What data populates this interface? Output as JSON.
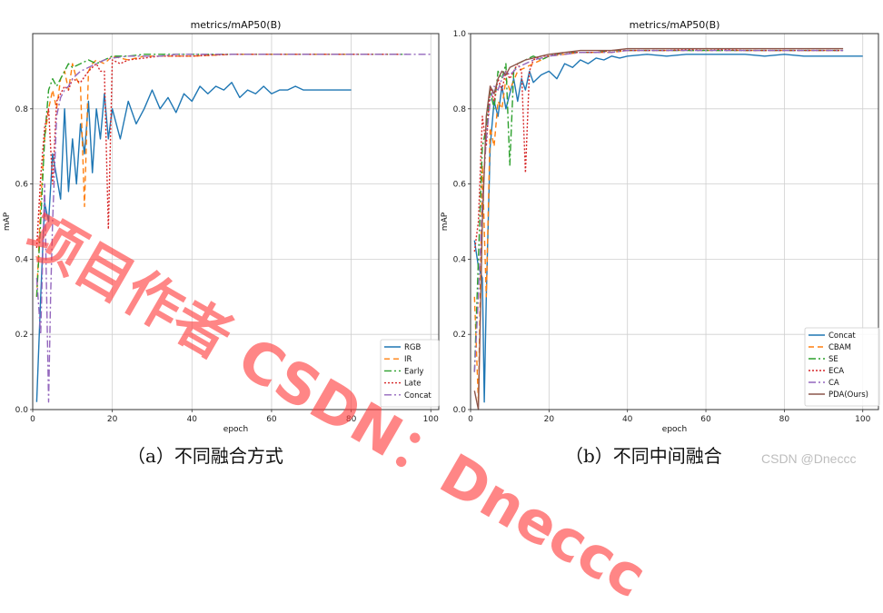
{
  "chart_data": [
    {
      "type": "line",
      "title": "metrics/mAP50(B)",
      "xlabel": "epoch",
      "ylabel": "mAP",
      "xlim": [
        0,
        102
      ],
      "ylim": [
        0,
        1.0
      ],
      "xticks": [
        "0",
        "20",
        "40",
        "60",
        "80",
        "100"
      ],
      "yticks": [
        "0.0",
        "0.2",
        "0.4",
        "0.6",
        "0.8"
      ],
      "grid": true,
      "legend": "bottom-right",
      "series": [
        {
          "name": "RGB",
          "color": "#1f77b4",
          "dash": "",
          "x": [
            1,
            2,
            3,
            4,
            5,
            6,
            7,
            8,
            9,
            10,
            11,
            12,
            13,
            14,
            15,
            16,
            17,
            18,
            19,
            20,
            22,
            24,
            26,
            28,
            30,
            32,
            34,
            36,
            38,
            40,
            42,
            44,
            46,
            48,
            50,
            52,
            54,
            56,
            58,
            60,
            62,
            64,
            66,
            68,
            70,
            72,
            74,
            76,
            78,
            80
          ],
          "y": [
            0.02,
            0.3,
            0.55,
            0.5,
            0.68,
            0.62,
            0.56,
            0.8,
            0.58,
            0.72,
            0.6,
            0.76,
            0.68,
            0.82,
            0.63,
            0.8,
            0.72,
            0.84,
            0.72,
            0.8,
            0.72,
            0.82,
            0.76,
            0.8,
            0.85,
            0.8,
            0.83,
            0.79,
            0.84,
            0.82,
            0.86,
            0.84,
            0.86,
            0.85,
            0.87,
            0.83,
            0.85,
            0.84,
            0.86,
            0.84,
            0.85,
            0.85,
            0.86,
            0.85,
            0.85,
            0.85,
            0.85,
            0.85,
            0.85,
            0.85
          ]
        },
        {
          "name": "IR",
          "color": "#ff7f0e",
          "dash": "6,4",
          "x": [
            1,
            2,
            3,
            4,
            5,
            6,
            7,
            8,
            9,
            10,
            11,
            12,
            13,
            14,
            15,
            16,
            18,
            20,
            24,
            28,
            32,
            36,
            40,
            50,
            60,
            70,
            80
          ],
          "y": [
            0.3,
            0.55,
            0.72,
            0.8,
            0.85,
            0.8,
            0.88,
            0.9,
            0.85,
            0.92,
            0.88,
            0.86,
            0.54,
            0.9,
            0.92,
            0.93,
            0.92,
            0.94,
            0.93,
            0.94,
            0.94,
            0.94,
            0.94,
            0.945,
            0.945,
            0.945,
            0.945
          ]
        },
        {
          "name": "Early",
          "color": "#2ca02c",
          "dash": "8,3,2,3",
          "x": [
            1,
            2,
            3,
            4,
            5,
            6,
            7,
            8,
            9,
            10,
            12,
            14,
            16,
            18,
            20,
            24,
            28,
            32,
            36,
            40,
            50,
            60,
            70,
            80,
            90,
            94
          ],
          "y": [
            0.3,
            0.5,
            0.72,
            0.85,
            0.88,
            0.86,
            0.88,
            0.9,
            0.92,
            0.91,
            0.92,
            0.93,
            0.92,
            0.93,
            0.94,
            0.94,
            0.945,
            0.945,
            0.945,
            0.945,
            0.945,
            0.945,
            0.945,
            0.945,
            0.945,
            0.945
          ]
        },
        {
          "name": "Late",
          "color": "#d62728",
          "dash": "2,2",
          "x": [
            1,
            2,
            3,
            4,
            5,
            6,
            7,
            8,
            9,
            10,
            12,
            14,
            16,
            17,
            18,
            19,
            20,
            22,
            24,
            28,
            32,
            36,
            40,
            50,
            60,
            70,
            80,
            90,
            92
          ],
          "y": [
            0.43,
            0.62,
            0.75,
            0.8,
            0.6,
            0.82,
            0.84,
            0.86,
            0.85,
            0.88,
            0.87,
            0.9,
            0.92,
            0.9,
            0.9,
            0.48,
            0.93,
            0.92,
            0.93,
            0.935,
            0.94,
            0.94,
            0.94,
            0.945,
            0.945,
            0.945,
            0.945,
            0.945,
            0.945
          ]
        },
        {
          "name": "Concat",
          "color": "#9467bd",
          "dash": "8,3,2,3",
          "x": [
            1,
            2,
            3,
            4,
            4.5,
            5,
            6,
            7,
            8,
            9,
            10,
            12,
            14,
            16,
            18,
            20,
            24,
            28,
            32,
            36,
            40,
            50,
            60,
            70,
            80,
            90,
            100
          ],
          "y": [
            0.35,
            0.2,
            0.6,
            0.02,
            0.3,
            0.5,
            0.78,
            0.83,
            0.85,
            0.86,
            0.88,
            0.9,
            0.91,
            0.92,
            0.93,
            0.935,
            0.94,
            0.94,
            0.94,
            0.945,
            0.945,
            0.945,
            0.945,
            0.945,
            0.945,
            0.945,
            0.945
          ]
        }
      ]
    },
    {
      "type": "line",
      "title": "metrics/mAP50(B)",
      "xlabel": "epoch",
      "ylabel": "mAP",
      "xlim": [
        0,
        104
      ],
      "ylim": [
        0,
        1.0
      ],
      "xticks": [
        "0",
        "20",
        "40",
        "60",
        "80",
        "100"
      ],
      "yticks": [
        "0.0",
        "0.2",
        "0.4",
        "0.6",
        "0.8",
        "1.0"
      ],
      "grid": true,
      "legend": "bottom-right",
      "series": [
        {
          "name": "Concat",
          "color": "#1f77b4",
          "dash": "",
          "x": [
            1,
            2,
            3,
            3.5,
            4,
            5,
            6,
            7,
            8,
            9,
            10,
            11,
            12,
            13,
            14,
            15,
            16,
            18,
            20,
            22,
            24,
            26,
            28,
            30,
            32,
            34,
            36,
            38,
            40,
            45,
            50,
            55,
            60,
            65,
            70,
            75,
            80,
            85,
            90,
            95,
            100
          ],
          "y": [
            0.45,
            0.38,
            0.35,
            0.02,
            0.3,
            0.7,
            0.82,
            0.78,
            0.86,
            0.8,
            0.84,
            0.88,
            0.82,
            0.88,
            0.85,
            0.9,
            0.87,
            0.89,
            0.9,
            0.88,
            0.92,
            0.91,
            0.93,
            0.92,
            0.935,
            0.93,
            0.94,
            0.935,
            0.94,
            0.945,
            0.94,
            0.945,
            0.945,
            0.945,
            0.945,
            0.94,
            0.945,
            0.94,
            0.94,
            0.94,
            0.94
          ]
        },
        {
          "name": "CBAM",
          "color": "#ff7f0e",
          "dash": "6,4",
          "x": [
            1,
            2,
            3,
            4,
            5,
            6,
            7,
            8,
            9,
            10,
            12,
            14,
            16,
            18,
            20,
            24,
            28,
            32,
            36,
            40,
            50,
            60,
            70,
            80,
            90,
            95
          ],
          "y": [
            0.3,
            0.02,
            0.65,
            0.3,
            0.75,
            0.7,
            0.82,
            0.8,
            0.88,
            0.85,
            0.9,
            0.91,
            0.92,
            0.93,
            0.94,
            0.945,
            0.95,
            0.95,
            0.95,
            0.955,
            0.955,
            0.955,
            0.955,
            0.955,
            0.955,
            0.955
          ]
        },
        {
          "name": "SE",
          "color": "#2ca02c",
          "dash": "8,3,2,3",
          "x": [
            1,
            2,
            3,
            4,
            5,
            6,
            7,
            8,
            9,
            10,
            11,
            12,
            14,
            16,
            18,
            20,
            24,
            28,
            32,
            36,
            40,
            50,
            60,
            70,
            80,
            90,
            95
          ],
          "y": [
            0.1,
            0.4,
            0.7,
            0.75,
            0.85,
            0.8,
            0.9,
            0.88,
            0.92,
            0.65,
            0.9,
            0.92,
            0.93,
            0.94,
            0.93,
            0.94,
            0.95,
            0.95,
            0.95,
            0.955,
            0.955,
            0.955,
            0.955,
            0.955,
            0.955,
            0.955,
            0.955
          ]
        },
        {
          "name": "ECA",
          "color": "#d62728",
          "dash": "2,2",
          "x": [
            1,
            2,
            3,
            4,
            5,
            6,
            7,
            8,
            9,
            10,
            12,
            13,
            14,
            15,
            16,
            18,
            20,
            24,
            28,
            32,
            36,
            40,
            50,
            60,
            70,
            80,
            90,
            95
          ],
          "y": [
            0.42,
            0.5,
            0.78,
            0.7,
            0.86,
            0.82,
            0.88,
            0.85,
            0.9,
            0.88,
            0.92,
            0.9,
            0.63,
            0.9,
            0.93,
            0.94,
            0.94,
            0.95,
            0.95,
            0.95,
            0.955,
            0.955,
            0.955,
            0.96,
            0.955,
            0.955,
            0.955,
            0.955
          ]
        },
        {
          "name": "CA",
          "color": "#9467bd",
          "dash": "8,3,2,3",
          "x": [
            1,
            2,
            3,
            4,
            5,
            6,
            7,
            8,
            9,
            10,
            12,
            14,
            16,
            18,
            20,
            24,
            28,
            32,
            36,
            40,
            50,
            60,
            70,
            80,
            90,
            95
          ],
          "y": [
            0.1,
            0.3,
            0.55,
            0.72,
            0.82,
            0.86,
            0.85,
            0.88,
            0.9,
            0.89,
            0.91,
            0.92,
            0.93,
            0.935,
            0.94,
            0.945,
            0.95,
            0.95,
            0.95,
            0.955,
            0.955,
            0.955,
            0.955,
            0.955,
            0.955,
            0.955
          ]
        },
        {
          "name": "PDA(Ours)",
          "color": "#8c564b",
          "dash": "",
          "x": [
            1,
            2,
            3,
            4,
            5,
            6,
            7,
            8,
            9,
            10,
            12,
            14,
            16,
            18,
            20,
            24,
            28,
            32,
            36,
            40,
            50,
            60,
            70,
            80,
            90,
            95
          ],
          "y": [
            0.05,
            0.0,
            0.5,
            0.78,
            0.86,
            0.84,
            0.88,
            0.9,
            0.89,
            0.91,
            0.92,
            0.93,
            0.935,
            0.94,
            0.945,
            0.95,
            0.955,
            0.955,
            0.955,
            0.96,
            0.96,
            0.96,
            0.96,
            0.96,
            0.96,
            0.96
          ]
        }
      ]
    }
  ],
  "captions": {
    "a": "（a）不同融合方式",
    "b": "（b）不同中间融合"
  },
  "watermarks": {
    "overlay": "项目作者 CSDN：Dneccc",
    "site": "CSDN @Dneccc"
  }
}
